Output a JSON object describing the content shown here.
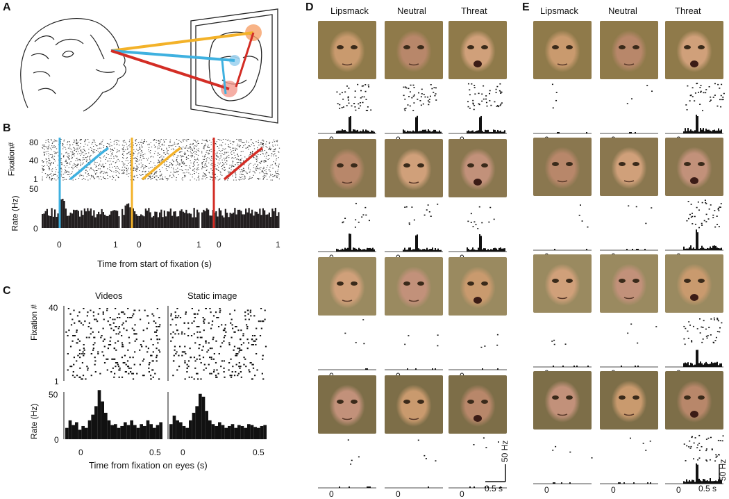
{
  "panels": {
    "A": "A",
    "B": "B",
    "C": "C",
    "D": "D",
    "E": "E"
  },
  "panelB": {
    "ylabel_top": "Fixation#",
    "ylabel_bottom": "Rate (Hz)",
    "yticks_top": [
      "80",
      "40",
      "1"
    ],
    "yticks_bottom": [
      "50",
      "0"
    ],
    "xticks": [
      "0",
      "1"
    ],
    "xlabel": "Time from start of fixation (s)",
    "colors": [
      "#3fb1e0",
      "#f3b229",
      "#d32d25"
    ]
  },
  "panelC": {
    "titles": [
      "Videos",
      "Static image"
    ],
    "ylabel_top": "Fixation #",
    "ylabel_bottom": "Rate (Hz)",
    "yticks_top": [
      "40",
      "1"
    ],
    "yticks_bottom": [
      "50",
      "0"
    ],
    "xticks": [
      "0",
      "0.5"
    ],
    "xlabel": "Time from fixation on eyes (s)"
  },
  "panelD": {
    "columns": [
      "Lipsmack",
      "Neutral",
      "Threat"
    ],
    "zero": "0",
    "scale_y": "50 Hz",
    "scale_x": "0.5 s"
  },
  "panelE": {
    "columns": [
      "Lipsmack",
      "Neutral",
      "Threat"
    ],
    "zero": "0",
    "scale_y": "50 Hz",
    "scale_x": "0.5 s"
  },
  "chart_data": [
    {
      "type": "bar",
      "panel": "C-videos",
      "x": [
        -0.1,
        -0.08,
        -0.06,
        -0.04,
        -0.02,
        0,
        0.02,
        0.04,
        0.06,
        0.08,
        0.1,
        0.12,
        0.14,
        0.16,
        0.18,
        0.2,
        0.22,
        0.24,
        0.26,
        0.28,
        0.3,
        0.32,
        0.34,
        0.36,
        0.38,
        0.4,
        0.42,
        0.44,
        0.46,
        0.48
      ],
      "values": [
        12,
        20,
        15,
        18,
        10,
        14,
        12,
        20,
        26,
        35,
        52,
        40,
        28,
        20,
        15,
        16,
        12,
        14,
        18,
        15,
        20,
        15,
        12,
        16,
        14,
        20,
        16,
        12,
        15,
        18
      ],
      "ylim": [
        0,
        50
      ]
    },
    {
      "type": "bar",
      "panel": "C-static",
      "x": [
        -0.1,
        -0.08,
        -0.06,
        -0.04,
        -0.02,
        0,
        0.02,
        0.04,
        0.06,
        0.08,
        0.1,
        0.12,
        0.14,
        0.16,
        0.18,
        0.2,
        0.22,
        0.24,
        0.26,
        0.28,
        0.3,
        0.32,
        0.34,
        0.36,
        0.38,
        0.4,
        0.42,
        0.44,
        0.46,
        0.48
      ],
      "values": [
        16,
        25,
        20,
        18,
        14,
        12,
        20,
        28,
        35,
        48,
        45,
        30,
        20,
        16,
        14,
        18,
        15,
        12,
        14,
        16,
        12,
        15,
        14,
        12,
        16,
        15,
        13,
        12,
        14,
        15
      ],
      "ylim": [
        0,
        50
      ]
    }
  ]
}
